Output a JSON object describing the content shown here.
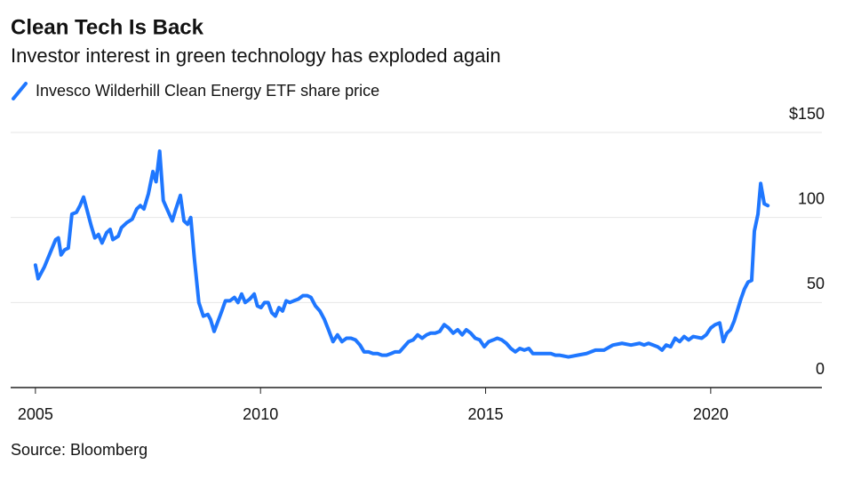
{
  "chart_data": {
    "type": "line",
    "title": "Clean Tech Is Back",
    "subtitle": "Investor interest in green technology has exploded again",
    "source": "Source: Bloomberg",
    "x": [
      2005.0,
      2005.06,
      2005.2,
      2005.34,
      2005.45,
      2005.51,
      2005.57,
      2005.65,
      2005.73,
      2005.81,
      2005.91,
      2005.99,
      2006.07,
      2006.14,
      2006.24,
      2006.32,
      2006.4,
      2006.48,
      2006.58,
      2006.66,
      2006.72,
      2006.84,
      2006.91,
      2007.03,
      2007.15,
      2007.25,
      2007.33,
      2007.41,
      2007.51,
      2007.61,
      2007.68,
      2007.76,
      2007.84,
      2007.94,
      2008.04,
      2008.12,
      2008.22,
      2008.3,
      2008.38,
      2008.45,
      2008.53,
      2008.63,
      2008.73,
      2008.83,
      2008.89,
      2008.97,
      2009.07,
      2009.14,
      2009.22,
      2009.32,
      2009.42,
      2009.5,
      2009.58,
      2009.66,
      2009.76,
      2009.86,
      2009.93,
      2010.01,
      2010.09,
      2010.17,
      2010.25,
      2010.33,
      2010.41,
      2010.49,
      2010.57,
      2010.65,
      2010.74,
      2010.84,
      2010.94,
      2011.04,
      2011.12,
      2011.22,
      2011.32,
      2011.42,
      2011.51,
      2011.61,
      2011.71,
      2011.81,
      2011.91,
      2012.01,
      2012.11,
      2012.21,
      2012.3,
      2012.4,
      2012.5,
      2012.6,
      2012.7,
      2012.8,
      2012.9,
      2012.99,
      2013.09,
      2013.19,
      2013.29,
      2013.39,
      2013.49,
      2013.59,
      2013.69,
      2013.78,
      2013.88,
      2013.98,
      2014.08,
      2014.18,
      2014.28,
      2014.38,
      2014.48,
      2014.57,
      2014.67,
      2014.77,
      2014.87,
      2014.97,
      2015.07,
      2015.17,
      2015.26,
      2015.36,
      2015.46,
      2015.56,
      2015.66,
      2015.76,
      2015.86,
      2015.96,
      2016.05,
      2016.25,
      2016.45,
      2016.55,
      2016.65,
      2016.84,
      2017.04,
      2017.24,
      2017.44,
      2017.54,
      2017.63,
      2017.83,
      2018.03,
      2018.23,
      2018.42,
      2018.52,
      2018.62,
      2018.82,
      2018.92,
      2019.01,
      2019.11,
      2019.21,
      2019.31,
      2019.41,
      2019.51,
      2019.61,
      2019.8,
      2019.9,
      2020.0,
      2020.1,
      2020.2,
      2020.28,
      2020.36,
      2020.44,
      2020.52,
      2020.59,
      2020.67,
      2020.75,
      2020.83,
      2020.91,
      2020.97,
      2021.05,
      2021.11,
      2021.19,
      2021.27
    ],
    "series": [
      {
        "name": "Invesco Wilderhill Clean Energy ETF share price",
        "color": "#1f77ff",
        "values": [
          72,
          64,
          71,
          80,
          87,
          88,
          78,
          81,
          82,
          102,
          103,
          107,
          112,
          105,
          95,
          88,
          90,
          85,
          91,
          93,
          87,
          89,
          94,
          97,
          99,
          105,
          107,
          105,
          114,
          127,
          121,
          139,
          110,
          104,
          98,
          105,
          113,
          98,
          96,
          100,
          76,
          50,
          42,
          43,
          40,
          33,
          40,
          45,
          51,
          51,
          53,
          50,
          55,
          50,
          52,
          55,
          48,
          47,
          50,
          50,
          44,
          42,
          47,
          45,
          51,
          50,
          51,
          52,
          54,
          54,
          53,
          48,
          45,
          40,
          34,
          27,
          31,
          27,
          29,
          29,
          28,
          25,
          21,
          21,
          20,
          20,
          19,
          19,
          20,
          21,
          21,
          24,
          27,
          28,
          31,
          29,
          31,
          32,
          32,
          33,
          37,
          35,
          32,
          34,
          31,
          34,
          32,
          29,
          28,
          24,
          27,
          28,
          29,
          28,
          26,
          23,
          21,
          23,
          22,
          23,
          20,
          20,
          20,
          19,
          19,
          18,
          19,
          20,
          22,
          22,
          22,
          25,
          26,
          25,
          26,
          25,
          26,
          24,
          22,
          25,
          24,
          29,
          27,
          30,
          28,
          30,
          29,
          31,
          35,
          37,
          38,
          27,
          32,
          34,
          39,
          45,
          52,
          58,
          62,
          63,
          92,
          102,
          120,
          108,
          107
        ]
      }
    ],
    "xlim": [
      2004.45,
      2022.47
    ],
    "xticks": [
      2005,
      2010,
      2015,
      2020
    ],
    "ylim": [
      0,
      150
    ],
    "yticks": [
      0,
      50,
      100,
      {
        "value": 150,
        "label": "$150"
      }
    ],
    "grid": true
  }
}
